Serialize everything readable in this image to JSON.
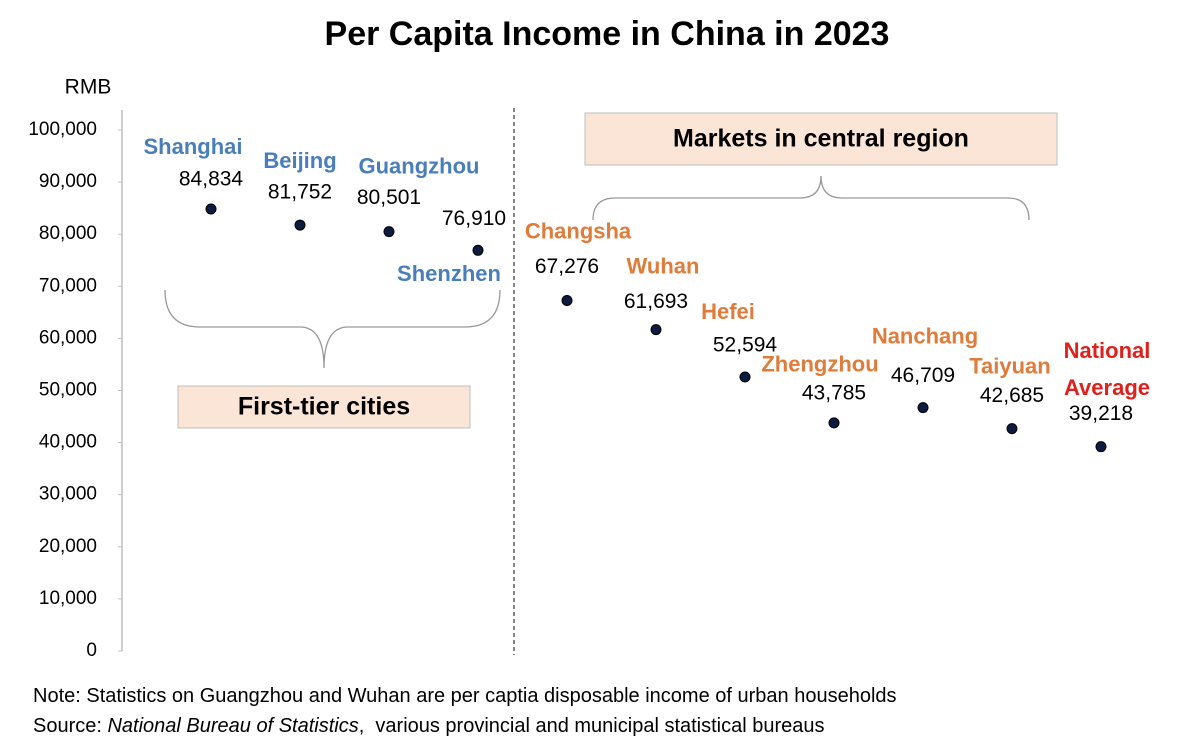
{
  "chart_data": {
    "type": "dot",
    "title": "Per Capita Income in China in 2023",
    "y_label": "RMB",
    "categories": [
      "Shanghai",
      "Beijing",
      "Guangzhou",
      "Shenzhen",
      "Changsha",
      "Wuhan",
      "Hefei",
      "Zhengzhou",
      "Nanchang",
      "Taiyuan",
      "National Average"
    ],
    "values": [
      84834,
      81752,
      80501,
      76910,
      67276,
      61693,
      52594,
      43785,
      46709,
      42685,
      39218
    ],
    "value_labels": [
      "84,834",
      "81,752",
      "80,501",
      "76,910",
      "67,276",
      "61,693",
      "52,594",
      "43,785",
      "46,709",
      "42,685",
      "39,218"
    ],
    "marker_color": "#0d1b3e",
    "label_colors": [
      "#4a7ebb",
      "#4a7ebb",
      "#4a7ebb",
      "#4a7ebb",
      "#e07b39",
      "#e07b39",
      "#e07b39",
      "#e07b39",
      "#e07b39",
      "#e07b39",
      "#e0201b"
    ],
    "ylim": [
      0,
      100000
    ],
    "yticks": [
      0,
      {
        "value": 10000,
        "label": "10,000"
      },
      {
        "value": 20000,
        "label": "20,000"
      },
      {
        "value": 30000,
        "label": "30,000"
      },
      {
        "value": 40000,
        "label": "40,000"
      },
      {
        "value": 50000,
        "label": "50,000"
      },
      {
        "value": 60000,
        "label": "60,000"
      },
      {
        "value": 70000,
        "label": "70,000"
      },
      {
        "value": 80000,
        "label": "80,000"
      },
      {
        "value": 90000,
        "label": "90,000"
      },
      {
        "value": 100000,
        "label": "100,000"
      }
    ],
    "annotations": [
      "Markets in central region",
      "First-tier cities"
    ],
    "note": "Note: Statistics on Guangzhou and Wuhan are per captia disposable income of urban households",
    "source": [
      "Source: ",
      "National Bureau of Statistics",
      ",  various provincial and municipal statistical bureaus"
    ]
  }
}
